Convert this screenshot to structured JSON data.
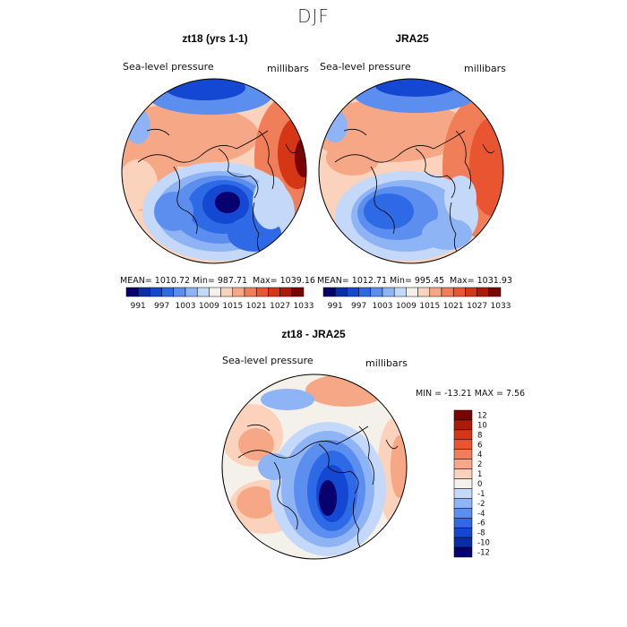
{
  "figure": {
    "season": "DJF",
    "field": "Sea-level pressure",
    "units": "millibars"
  },
  "panels": [
    {
      "id": "model",
      "title": "zt18 (yrs 1-1)",
      "mean": "MEAN= 1010.72",
      "min": "Min= 987.71",
      "max": "Max= 1039.16"
    },
    {
      "id": "obs",
      "title": "JRA25",
      "mean": "MEAN= 1012.71",
      "min": "Min= 995.45",
      "max": "Max= 1031.93"
    },
    {
      "id": "diff",
      "title": "zt18 - JRA25",
      "minmax": "MIN = -13.21  MAX =    7.56"
    }
  ],
  "colorbars": {
    "absolute": {
      "colors": [
        "#08006e",
        "#0a2ea8",
        "#1448d2",
        "#2e6ae6",
        "#5c8ef0",
        "#8fb4f6",
        "#c4d8fa",
        "#f4f0ea",
        "#fbd2bc",
        "#f6a886",
        "#f07e58",
        "#e85530",
        "#d43616",
        "#ad1a08",
        "#7a0400"
      ],
      "tick_labels": [
        "991",
        "997",
        "1003",
        "1009",
        "1015",
        "1021",
        "1027",
        "1033"
      ]
    },
    "difference": {
      "colors": [
        "#08006e",
        "#0a2ea8",
        "#1448d2",
        "#2e6ae6",
        "#5c8ef0",
        "#8fb4f6",
        "#c4d8fa",
        "#f4f0ea",
        "#fbd2bc",
        "#f6a886",
        "#f07e58",
        "#e85530",
        "#d43616",
        "#ad1a08",
        "#7a0400"
      ],
      "tick_labels": [
        "-12",
        "-10",
        "-8",
        "-6",
        "-4",
        "-2",
        "-1",
        "0",
        "1",
        "2",
        "4",
        "6",
        "8",
        "10",
        "12"
      ]
    }
  }
}
